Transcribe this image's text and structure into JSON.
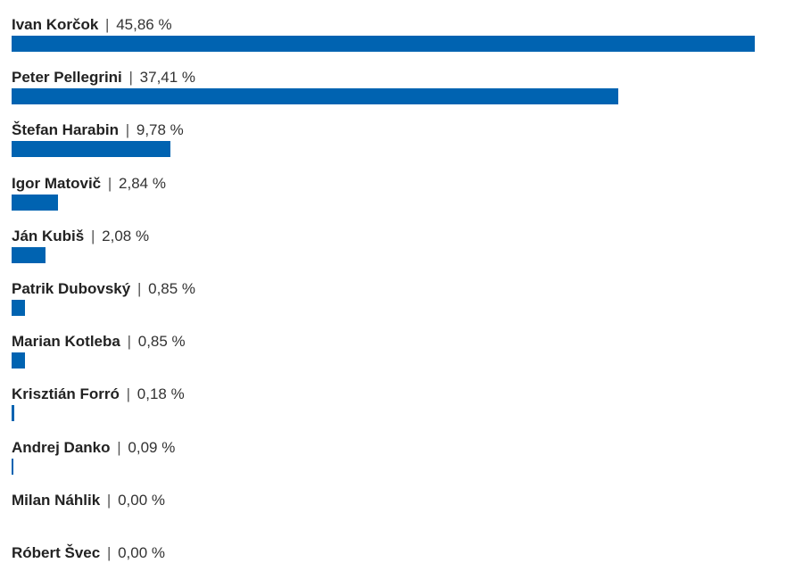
{
  "chart_data": {
    "type": "bar",
    "orientation": "horizontal",
    "bar_color": "#0063b1",
    "categories": [
      "Ivan Korčok",
      "Peter Pellegrini",
      "Štefan Harabin",
      "Igor Matovič",
      "Ján Kubiš",
      "Patrik Dubovský",
      "Marian Kotleba",
      "Krisztián Forró",
      "Andrej Danko",
      "Milan Náhlik",
      "Róbert Švec"
    ],
    "values": [
      45.86,
      37.41,
      9.78,
      2.84,
      2.08,
      0.85,
      0.85,
      0.18,
      0.09,
      0.0,
      0.0
    ],
    "value_labels": [
      "45,86 %",
      "37,41 %",
      "9,78 %",
      "2,84 %",
      "2,08 %",
      "0,85 %",
      "0,85 %",
      "0,18 %",
      "0,09 %",
      "0,00 %",
      "0,00 %"
    ],
    "separator": "|",
    "xlim": [
      0,
      45.86
    ],
    "grid": false,
    "legend": "none"
  }
}
